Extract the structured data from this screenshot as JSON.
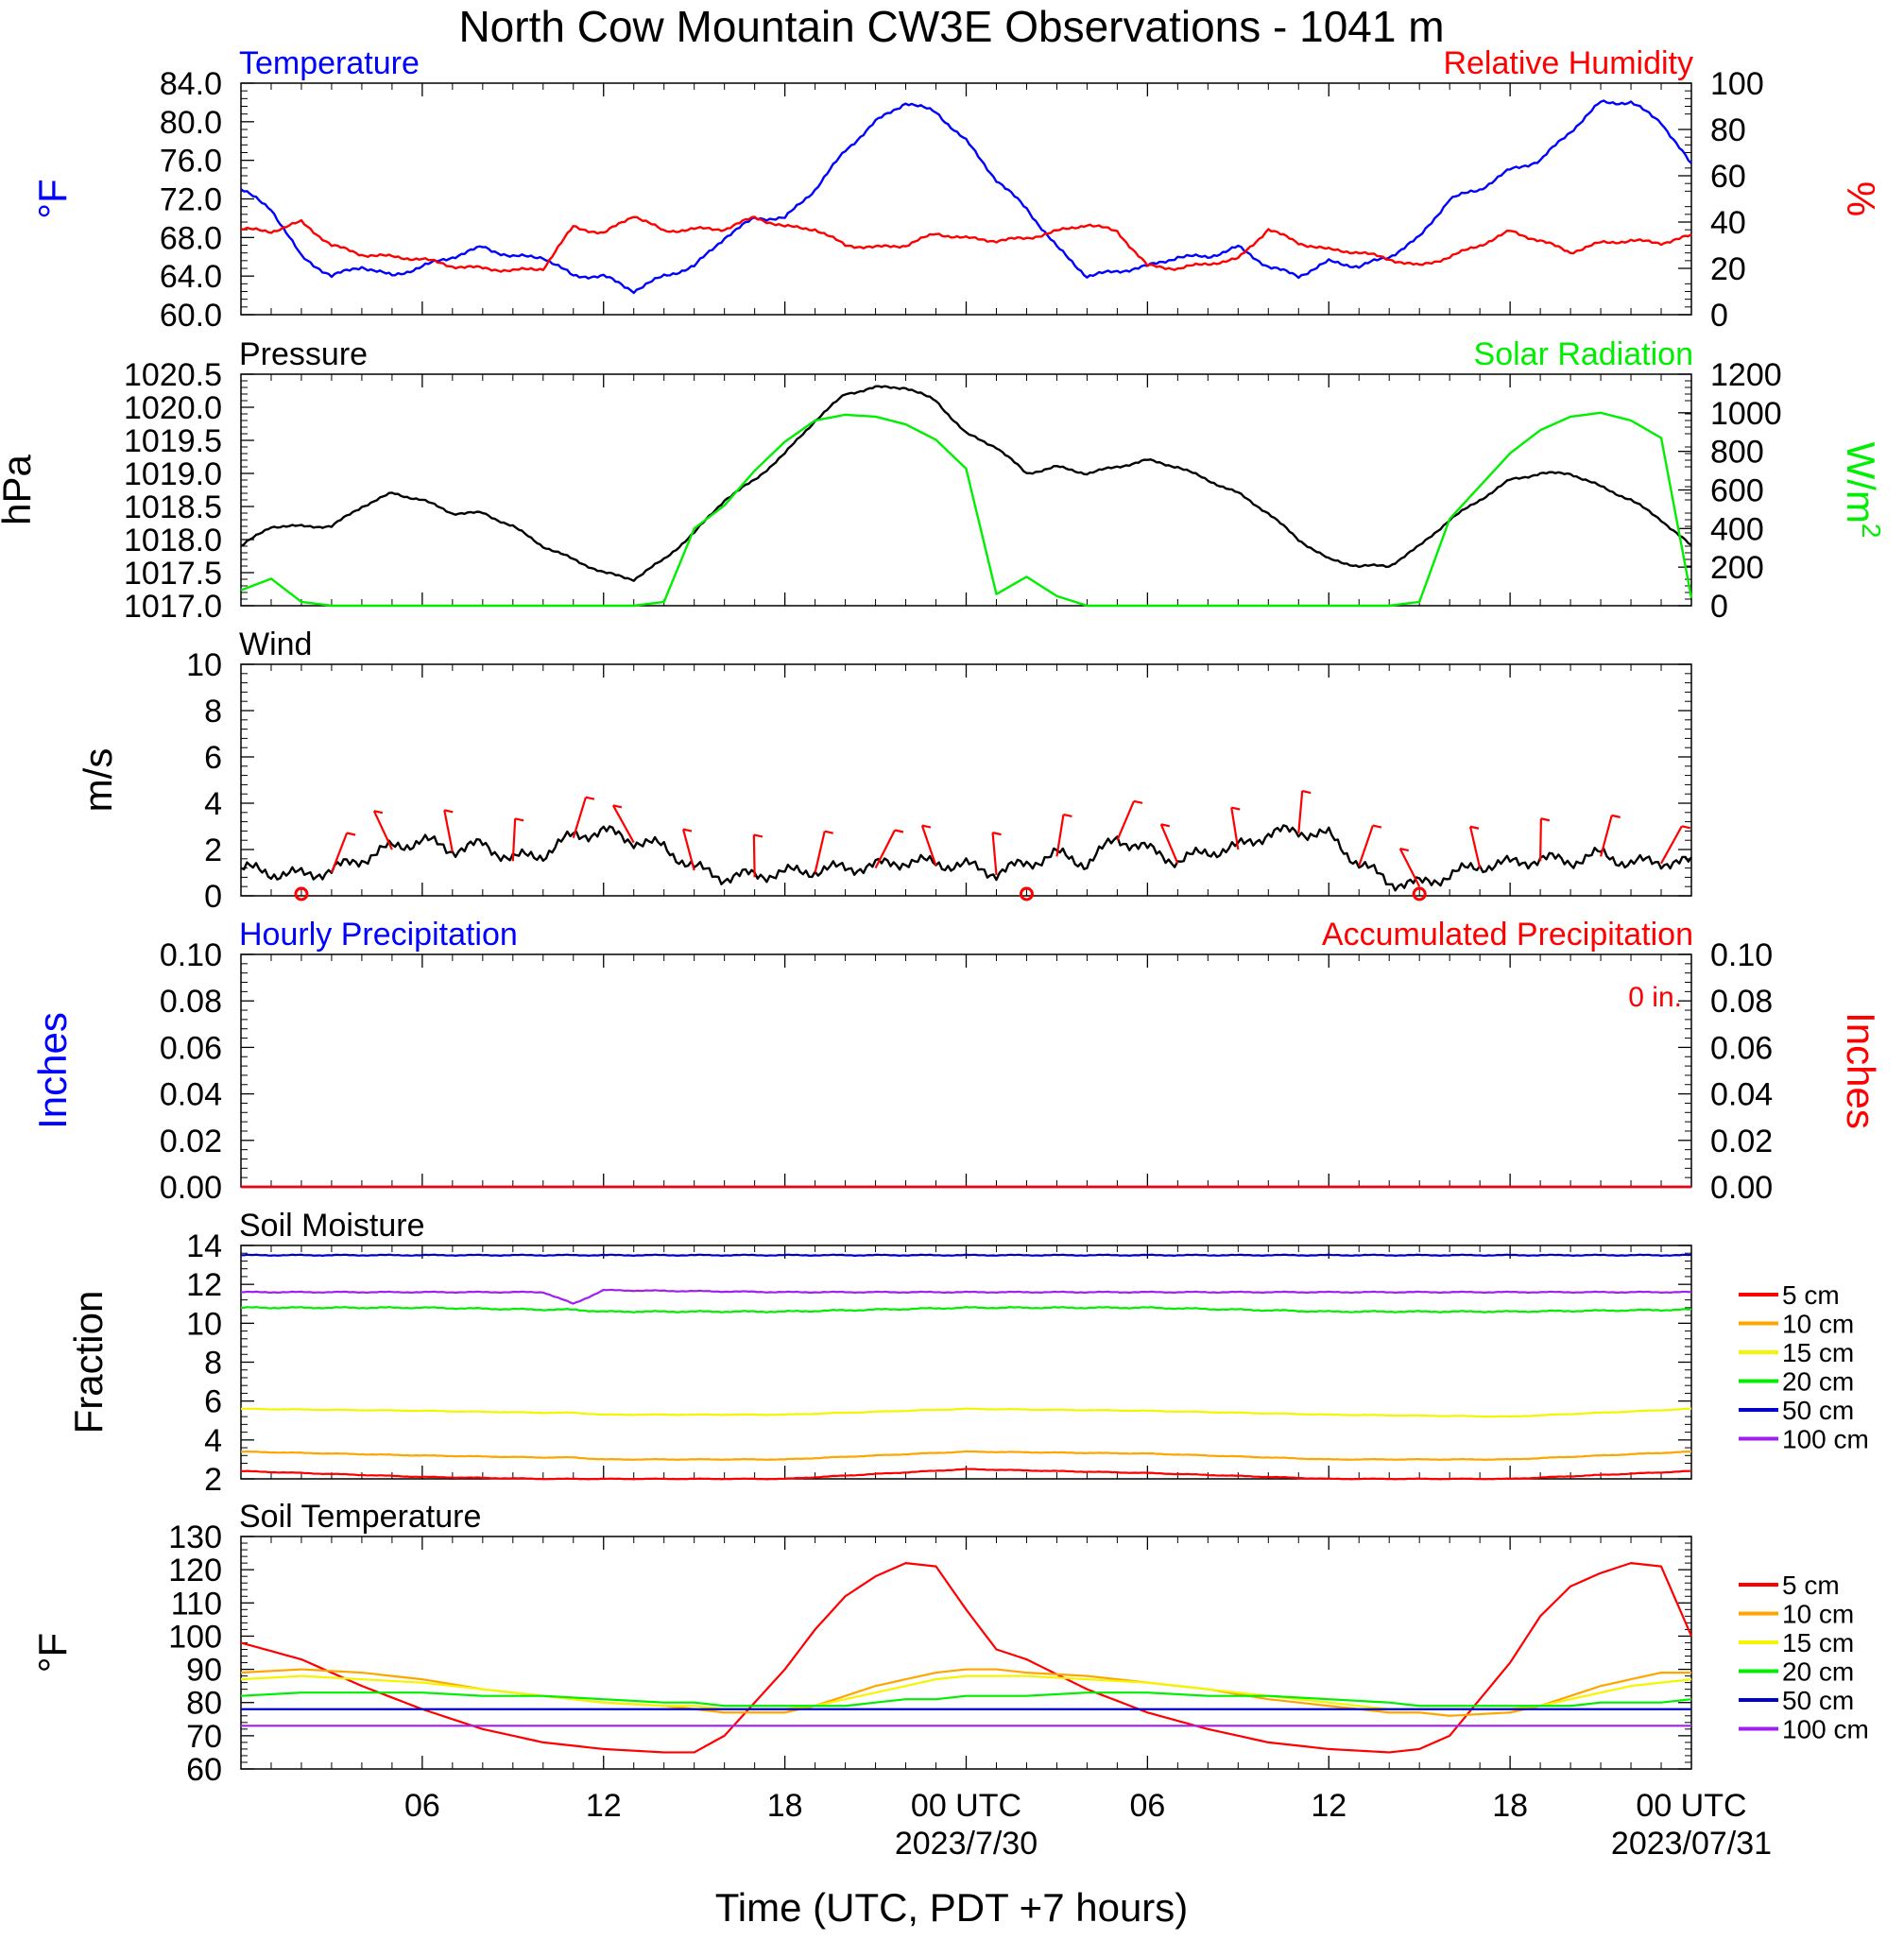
{
  "page": {
    "title": "North Cow Mountain CW3E Observations - 1041 m",
    "xlabel": "Time (UTC, PDT +7 hours)",
    "time_ticks": [
      {
        "label": "06",
        "hour": 6
      },
      {
        "label": "12",
        "hour": 12
      },
      {
        "label": "18",
        "hour": 18
      },
      {
        "label": "00 UTC",
        "hour": 24,
        "date": "2023/7/30"
      },
      {
        "label": "06",
        "hour": 30
      },
      {
        "label": "12",
        "hour": 36
      },
      {
        "label": "18",
        "hour": 42
      },
      {
        "label": "00 UTC",
        "hour": 48,
        "date": "2023/07/31"
      }
    ]
  },
  "colors": {
    "blue": "#0000ff",
    "red": "#ff0000",
    "green": "#00ee00",
    "black": "#000000",
    "orange": "#ffa500",
    "yellow": "#f5f500",
    "purple": "#a020f0",
    "navy": "#0000cc"
  },
  "chart_data": [
    {
      "id": "temp_rh",
      "type": "line",
      "title_left": "Temperature",
      "title_right": "Relative Humidity",
      "ylabel_left": "°F",
      "ylabel_right": "%",
      "x_hours": [
        0,
        1,
        2,
        3,
        4,
        5,
        6,
        7,
        8,
        9,
        10,
        11,
        12,
        13,
        14,
        15,
        16,
        17,
        18,
        19,
        20,
        21,
        22,
        23,
        24,
        25,
        26,
        27,
        28,
        29,
        30,
        31,
        32,
        33,
        34,
        35,
        36,
        37,
        38,
        39,
        40,
        41,
        42,
        43,
        44,
        45,
        46,
        47,
        48
      ],
      "yleft": {
        "range": [
          60,
          84
        ],
        "ticks": [
          "60.0",
          "64.0",
          "68.0",
          "72.0",
          "76.0",
          "80.0",
          "84.0"
        ]
      },
      "yright": {
        "range": [
          0,
          100
        ],
        "ticks": [
          "0",
          "20",
          "40",
          "60",
          "80",
          "100"
        ]
      },
      "series": [
        {
          "name": "Temperature",
          "axis": "left",
          "color": "#0000ff",
          "values": [
            73,
            71,
            66,
            64,
            65,
            64,
            65,
            66,
            67,
            66,
            66,
            64,
            64,
            62.5,
            64,
            65,
            68,
            70,
            70,
            73,
            77,
            80,
            82,
            81,
            78,
            74,
            71,
            67,
            64,
            64.5,
            65,
            66,
            66,
            67,
            65,
            64,
            65.5,
            65,
            66,
            68,
            72,
            73,
            75,
            76,
            79,
            82,
            82,
            80,
            75.5
          ]
        },
        {
          "name": "Relative Humidity",
          "axis": "right",
          "color": "#ff0000",
          "values": [
            37,
            36,
            40,
            30,
            26,
            25,
            24,
            21,
            20,
            19,
            20,
            38,
            35,
            43,
            36,
            37,
            37,
            42,
            38,
            37,
            30,
            29,
            30,
            35,
            33,
            32,
            33,
            36,
            39,
            36,
            21,
            20,
            22,
            24,
            37,
            31,
            28,
            27,
            24,
            21,
            25,
            30,
            36,
            32,
            27,
            31,
            32,
            31,
            34
          ]
        }
      ]
    },
    {
      "id": "pressure_solar",
      "type": "line",
      "title_left": "Pressure",
      "title_right": "Solar Radiation",
      "ylabel_left": "hPa",
      "ylabel_right": "W/m",
      "ylabel_right_sup": "2",
      "x_hours": [
        0,
        1,
        2,
        3,
        4,
        5,
        6,
        7,
        8,
        9,
        10,
        11,
        12,
        13,
        14,
        15,
        16,
        17,
        18,
        19,
        20,
        21,
        22,
        23,
        24,
        25,
        26,
        27,
        28,
        29,
        30,
        31,
        32,
        33,
        34,
        35,
        36,
        37,
        38,
        39,
        40,
        41,
        42,
        43,
        44,
        45,
        46,
        47,
        48
      ],
      "yleft": {
        "range": [
          1017.0,
          1020.5
        ],
        "ticks": [
          "1017.0",
          "1017.5",
          "1018.0",
          "1018.5",
          "1019.0",
          "1019.5",
          "1020.0",
          "1020.5"
        ]
      },
      "yright": {
        "range": [
          0,
          1200
        ],
        "ticks": [
          "0",
          "200",
          "400",
          "600",
          "800",
          "1000",
          "1200"
        ]
      },
      "series": [
        {
          "name": "Pressure",
          "axis": "left",
          "color": "#000000",
          "values": [
            1017.9,
            1018.2,
            1018.2,
            1018.2,
            1018.5,
            1018.7,
            1018.6,
            1018.4,
            1018.4,
            1018.2,
            1017.9,
            1017.7,
            1017.5,
            1017.4,
            1017.7,
            1018.1,
            1018.6,
            1018.9,
            1019.3,
            1019.8,
            1020.2,
            1020.3,
            1020.3,
            1020.1,
            1019.6,
            1019.4,
            1019.0,
            1019.1,
            1019.0,
            1019.1,
            1019.2,
            1019.1,
            1018.9,
            1018.7,
            1018.4,
            1018.0,
            1017.7,
            1017.6,
            1017.6,
            1017.9,
            1018.3,
            1018.6,
            1018.9,
            1019.0,
            1019.0,
            1018.8,
            1018.6,
            1018.3,
            1017.9
          ]
        },
        {
          "name": "Solar Radiation",
          "axis": "right",
          "color": "#00ee00",
          "values": [
            80,
            140,
            20,
            0,
            0,
            0,
            0,
            0,
            0,
            0,
            0,
            0,
            0,
            0,
            20,
            400,
            520,
            700,
            850,
            960,
            990,
            980,
            940,
            860,
            710,
            60,
            150,
            50,
            0,
            0,
            0,
            0,
            0,
            0,
            0,
            0,
            0,
            0,
            0,
            20,
            450,
            620,
            790,
            910,
            980,
            1000,
            960,
            870,
            40
          ]
        }
      ]
    },
    {
      "id": "wind",
      "type": "line",
      "title_left": "Wind",
      "ylabel_left": "m/s",
      "x_hours": [
        0,
        1,
        2,
        3,
        4,
        5,
        6,
        7,
        8,
        9,
        10,
        11,
        12,
        13,
        14,
        15,
        16,
        17,
        18,
        19,
        20,
        21,
        22,
        23,
        24,
        25,
        26,
        27,
        28,
        29,
        30,
        31,
        32,
        33,
        34,
        35,
        36,
        37,
        38,
        39,
        40,
        41,
        42,
        43,
        44,
        45,
        46,
        47,
        48
      ],
      "yleft": {
        "range": [
          0,
          10
        ],
        "ticks": [
          "0",
          "2",
          "4",
          "6",
          "8",
          "10"
        ]
      },
      "series": [
        {
          "name": "Wind speed",
          "color": "#000000",
          "values": [
            1.2,
            1.0,
            0.9,
            1.1,
            1.6,
            2.1,
            2.4,
            2.0,
            2.2,
            1.6,
            1.8,
            2.6,
            2.8,
            2.4,
            2.1,
            1.2,
            0.8,
            0.9,
            1.0,
            1.1,
            1.2,
            1.3,
            1.5,
            1.4,
            1.3,
            1.0,
            1.4,
            1.8,
            1.4,
            2.5,
            2.0,
            1.5,
            1.9,
            2.1,
            2.7,
            2.8,
            2.6,
            1.4,
            0.6,
            0.5,
            0.9,
            1.3,
            1.4,
            1.6,
            1.5,
            1.8,
            1.4,
            1.5,
            1.4
          ]
        }
      ],
      "barbs": [
        {
          "hour": 2,
          "calm": true
        },
        {
          "hour": 26,
          "calm": true
        },
        {
          "hour": 39,
          "calm": true
        }
      ]
    },
    {
      "id": "precip",
      "type": "line",
      "title_left": "Hourly Precipitation",
      "title_right": "Accumulated Precipitation",
      "note": "0 in.",
      "ylabel_left": "Inches",
      "ylabel_right": "Inches",
      "x_hours": [
        0,
        48
      ],
      "yleft": {
        "range": [
          0,
          0.1
        ],
        "ticks": [
          "0.00",
          "0.02",
          "0.04",
          "0.06",
          "0.08",
          "0.10"
        ]
      },
      "yright": {
        "range": [
          0,
          0.1
        ],
        "ticks": [
          "0.00",
          "0.02",
          "0.04",
          "0.06",
          "0.08",
          "0.10"
        ]
      },
      "series": [
        {
          "name": "Hourly Precipitation",
          "color": "#0000ff",
          "values": [
            0,
            0
          ]
        },
        {
          "name": "Accumulated Precipitation",
          "color": "#ff0000",
          "values": [
            0,
            0
          ]
        }
      ]
    },
    {
      "id": "soil_moisture",
      "type": "line",
      "title_left": "Soil Moisture",
      "ylabel_left": "Fraction",
      "x_hours": [
        0,
        6,
        10,
        11,
        12,
        18,
        24,
        30,
        36,
        42,
        48
      ],
      "yleft": {
        "range": [
          2,
          14
        ],
        "ticks": [
          "2",
          "4",
          "6",
          "8",
          "10",
          "12",
          "14"
        ]
      },
      "series": [
        {
          "name": "5 cm",
          "color": "#ff0000",
          "values": [
            2.4,
            2.1,
            2.0,
            2.0,
            2.0,
            2.0,
            2.5,
            2.3,
            2.0,
            2.0,
            2.4
          ]
        },
        {
          "name": "10 cm",
          "color": "#ffa500",
          "values": [
            3.4,
            3.2,
            3.1,
            3.1,
            3.0,
            3.0,
            3.4,
            3.3,
            3.0,
            3.0,
            3.4
          ]
        },
        {
          "name": "15 cm",
          "color": "#f5f500",
          "values": [
            5.6,
            5.5,
            5.4,
            5.4,
            5.3,
            5.3,
            5.6,
            5.5,
            5.3,
            5.2,
            5.6
          ]
        },
        {
          "name": "20 cm",
          "color": "#00ee00",
          "values": [
            10.8,
            10.8,
            10.7,
            10.7,
            10.6,
            10.6,
            10.8,
            10.8,
            10.6,
            10.6,
            10.7
          ]
        },
        {
          "name": "50 cm",
          "color": "#0000cc",
          "values": [
            13.5,
            13.5,
            13.5,
            13.5,
            13.5,
            13.5,
            13.5,
            13.5,
            13.5,
            13.5,
            13.5
          ]
        },
        {
          "name": "100 cm",
          "color": "#a020f0",
          "values": [
            11.6,
            11.6,
            11.6,
            11.0,
            11.7,
            11.6,
            11.6,
            11.6,
            11.6,
            11.6,
            11.6
          ]
        }
      ]
    },
    {
      "id": "soil_temperature",
      "type": "line",
      "title_left": "Soil Temperature",
      "ylabel_left": "°F",
      "x_hours": [
        0,
        2,
        4,
        6,
        8,
        10,
        12,
        14,
        15,
        16,
        18,
        19,
        20,
        21,
        22,
        23,
        24,
        25,
        26,
        28,
        30,
        32,
        34,
        36,
        38,
        39,
        40,
        42,
        43,
        44,
        45,
        46,
        47,
        48
      ],
      "yleft": {
        "range": [
          60,
          130
        ],
        "ticks": [
          "60",
          "70",
          "80",
          "90",
          "100",
          "110",
          "120",
          "130"
        ]
      },
      "series": [
        {
          "name": "5 cm",
          "color": "#ff0000",
          "values": [
            98,
            93,
            85,
            78,
            72,
            68,
            66,
            65,
            65,
            70,
            90,
            102,
            112,
            118,
            122,
            121,
            108,
            96,
            93,
            84,
            77,
            72,
            68,
            66,
            65,
            66,
            70,
            92,
            106,
            115,
            119,
            122,
            121,
            100
          ]
        },
        {
          "name": "10 cm",
          "color": "#ffa500",
          "values": [
            89,
            90,
            89,
            87,
            84,
            82,
            80,
            79,
            78,
            77,
            77,
            79,
            82,
            85,
            87,
            89,
            90,
            90,
            89,
            88,
            86,
            84,
            81,
            79,
            77,
            77,
            76,
            77,
            79,
            82,
            85,
            87,
            89,
            89
          ]
        },
        {
          "name": "15 cm",
          "color": "#f5f500",
          "values": [
            87,
            88,
            87,
            86,
            84,
            82,
            80,
            79,
            79,
            78,
            78,
            79,
            81,
            83,
            85,
            87,
            88,
            88,
            88,
            87,
            86,
            84,
            82,
            80,
            78,
            78,
            78,
            78,
            79,
            81,
            83,
            85,
            86,
            87
          ]
        },
        {
          "name": "20 cm",
          "color": "#00ee00",
          "values": [
            82,
            83,
            83,
            83,
            82,
            82,
            81,
            80,
            80,
            79,
            79,
            79,
            79,
            80,
            81,
            81,
            82,
            82,
            82,
            83,
            83,
            82,
            82,
            81,
            80,
            79,
            79,
            79,
            79,
            79,
            80,
            80,
            80,
            81
          ]
        },
        {
          "name": "50 cm",
          "color": "#0000cc",
          "values": [
            78,
            78,
            78,
            78,
            78,
            78,
            78,
            78,
            78,
            78,
            78,
            78,
            78,
            78,
            78,
            78,
            78,
            78,
            78,
            78,
            78,
            78,
            78,
            78,
            78,
            78,
            78,
            78,
            78,
            78,
            78,
            78,
            78,
            78
          ]
        },
        {
          "name": "100 cm",
          "color": "#a020f0",
          "values": [
            73,
            73,
            73,
            73,
            73,
            73,
            73,
            73,
            73,
            73,
            73,
            73,
            73,
            73,
            73,
            73,
            73,
            73,
            73,
            73,
            73,
            73,
            73,
            73,
            73,
            73,
            73,
            73,
            73,
            73,
            73,
            73,
            73,
            73
          ]
        }
      ]
    }
  ]
}
